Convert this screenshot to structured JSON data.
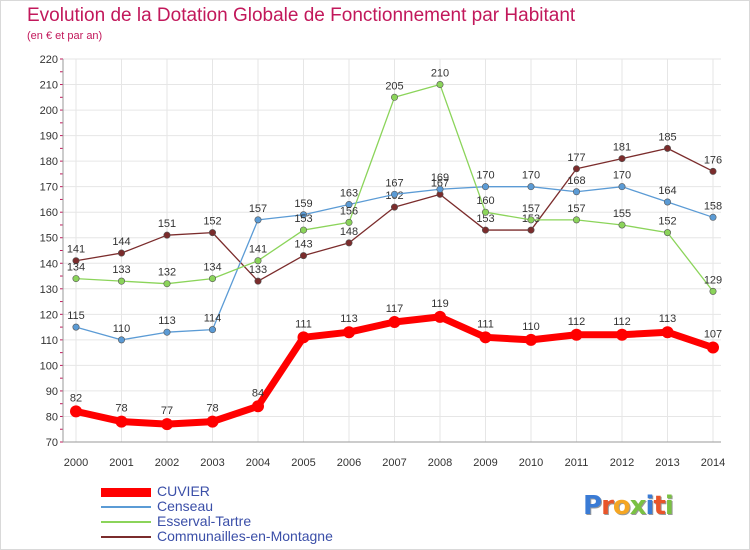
{
  "title": "Evolution de la Dotation Globale de Fonctionnement par Habitant",
  "subtitle": "(en € et par an)",
  "logo_text": "Proxiti",
  "chart_data": {
    "type": "line",
    "title": "Evolution de la Dotation Globale de Fonctionnement par Habitant",
    "ylabel": "(en € et par an)",
    "xlabel": "",
    "ylim": [
      70,
      220
    ],
    "yticks": [
      70,
      80,
      90,
      100,
      110,
      120,
      130,
      140,
      150,
      160,
      170,
      180,
      190,
      200,
      210,
      220
    ],
    "x": [
      2000,
      2001,
      2002,
      2003,
      2004,
      2005,
      2006,
      2007,
      2008,
      2009,
      2010,
      2011,
      2012,
      2013,
      2014
    ],
    "grid": true,
    "legend_position": "bottom-left",
    "series": [
      {
        "name": "CUVIER",
        "color": "#ff0000",
        "values": [
          82,
          78,
          77,
          78,
          84,
          111,
          113,
          117,
          119,
          111,
          110,
          112,
          112,
          113,
          107
        ]
      },
      {
        "name": "Censeau",
        "color": "#5b9bd5",
        "values": [
          115,
          110,
          113,
          114,
          157,
          159,
          163,
          167,
          169,
          170,
          170,
          168,
          170,
          164,
          158
        ]
      },
      {
        "name": "Esserval-Tartre",
        "color": "#8bd45a",
        "values": [
          134,
          133,
          132,
          134,
          141,
          153,
          156,
          205,
          210,
          160,
          157,
          157,
          155,
          152,
          129
        ]
      },
      {
        "name": "Communailles-en-Montagne",
        "color": "#7b2c2c",
        "values": [
          141,
          144,
          151,
          152,
          133,
          143,
          148,
          162,
          167,
          153,
          153,
          177,
          181,
          185,
          176
        ]
      }
    ]
  }
}
